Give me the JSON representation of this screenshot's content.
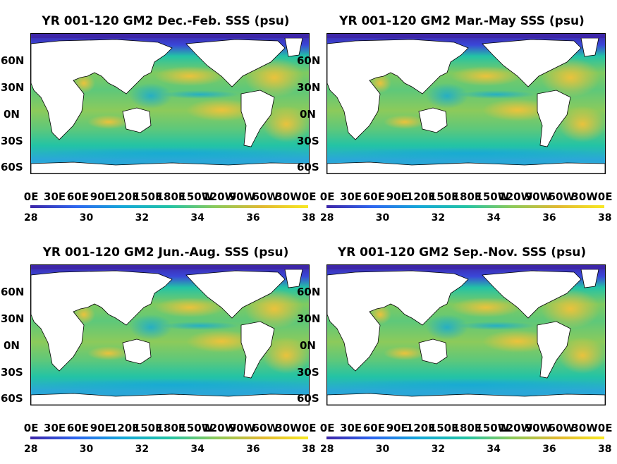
{
  "colorbar": {
    "ticks": [
      "28",
      "30",
      "32",
      "34",
      "36",
      "38"
    ],
    "stops": [
      "#3d26a8",
      "#2e67f0",
      "#15a8d8",
      "#23c3a5",
      "#8cca5b",
      "#e1b932",
      "#f8e823"
    ]
  },
  "lat_labels": [
    "60N",
    "30N",
    "0N",
    "30S",
    "60S"
  ],
  "lon_labels": [
    "0E",
    "30E",
    "60E",
    "90E",
    "120E",
    "150E",
    "180E",
    "150W",
    "120W",
    "90W",
    "60W",
    "30W",
    "0E"
  ],
  "panels": [
    {
      "title": "YR 001-120 GM2 Dec.-Feb. SSS (psu)"
    },
    {
      "title": "YR 001-120 GM2 Mar.-May SSS (psu)"
    },
    {
      "title": "YR 001-120 GM2 Jun.-Aug. SSS (psu)"
    },
    {
      "title": "YR 001-120 GM2 Sep.-Nov. SSS (psu)"
    }
  ]
}
